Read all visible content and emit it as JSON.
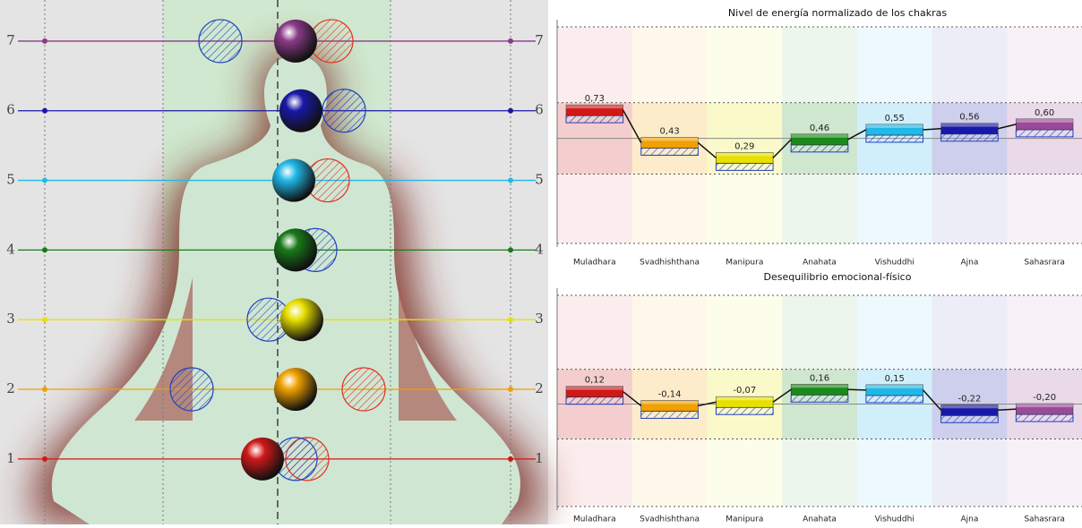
{
  "chart_data": [
    {
      "type": "levels",
      "ylim": [
        0.06,
        7.59
      ],
      "yticks": [
        1,
        2,
        3,
        4,
        5,
        6,
        7
      ],
      "colors": [
        "#d01818",
        "#f0a000",
        "#e8e000",
        "#1a7a1a",
        "#20b8e8",
        "#1818a8",
        "#8a3a88"
      ]
    },
    {
      "type": "level-bar",
      "title": "Nivel de energía normalizado de los chakras",
      "categories": [
        "Muladhara",
        "Svadhishthana",
        "Manipura",
        "Anahata",
        "Vishuddhi",
        "Ajna",
        "Sahasrara"
      ],
      "values": [
        0.73,
        0.43,
        0.29,
        0.46,
        0.55,
        0.56,
        0.6
      ],
      "value_labels": [
        "0,73",
        "0,43",
        "0,29",
        "0,46",
        "0,55",
        "0,56",
        "0,60"
      ],
      "colors": [
        "#d01818",
        "#f0a000",
        "#e8e000",
        "#1a8a1a",
        "#20b8e8",
        "#1818a8",
        "#9a4a98"
      ],
      "ylim": [
        -0.5,
        1.5
      ]
    },
    {
      "type": "level-bar",
      "title": "Desequilibrio emocional-físico",
      "categories": [
        "Muladhara",
        "Svadhishthana",
        "Manipura",
        "Anahata",
        "Vishuddhi",
        "Ajna",
        "Sahasrara"
      ],
      "values": [
        0.12,
        -0.14,
        -0.07,
        0.16,
        0.15,
        -0.22,
        -0.2
      ],
      "value_labels": [
        "0,12",
        "-0,14",
        "-0,07",
        "0,16",
        "0,15",
        "-0,22",
        "-0,20"
      ],
      "colors": [
        "#d01818",
        "#f0a000",
        "#e8e000",
        "#1a8a1a",
        "#20b8e8",
        "#1818a8",
        "#9a4a98"
      ],
      "ylim": [
        -2,
        1.9
      ]
    }
  ]
}
